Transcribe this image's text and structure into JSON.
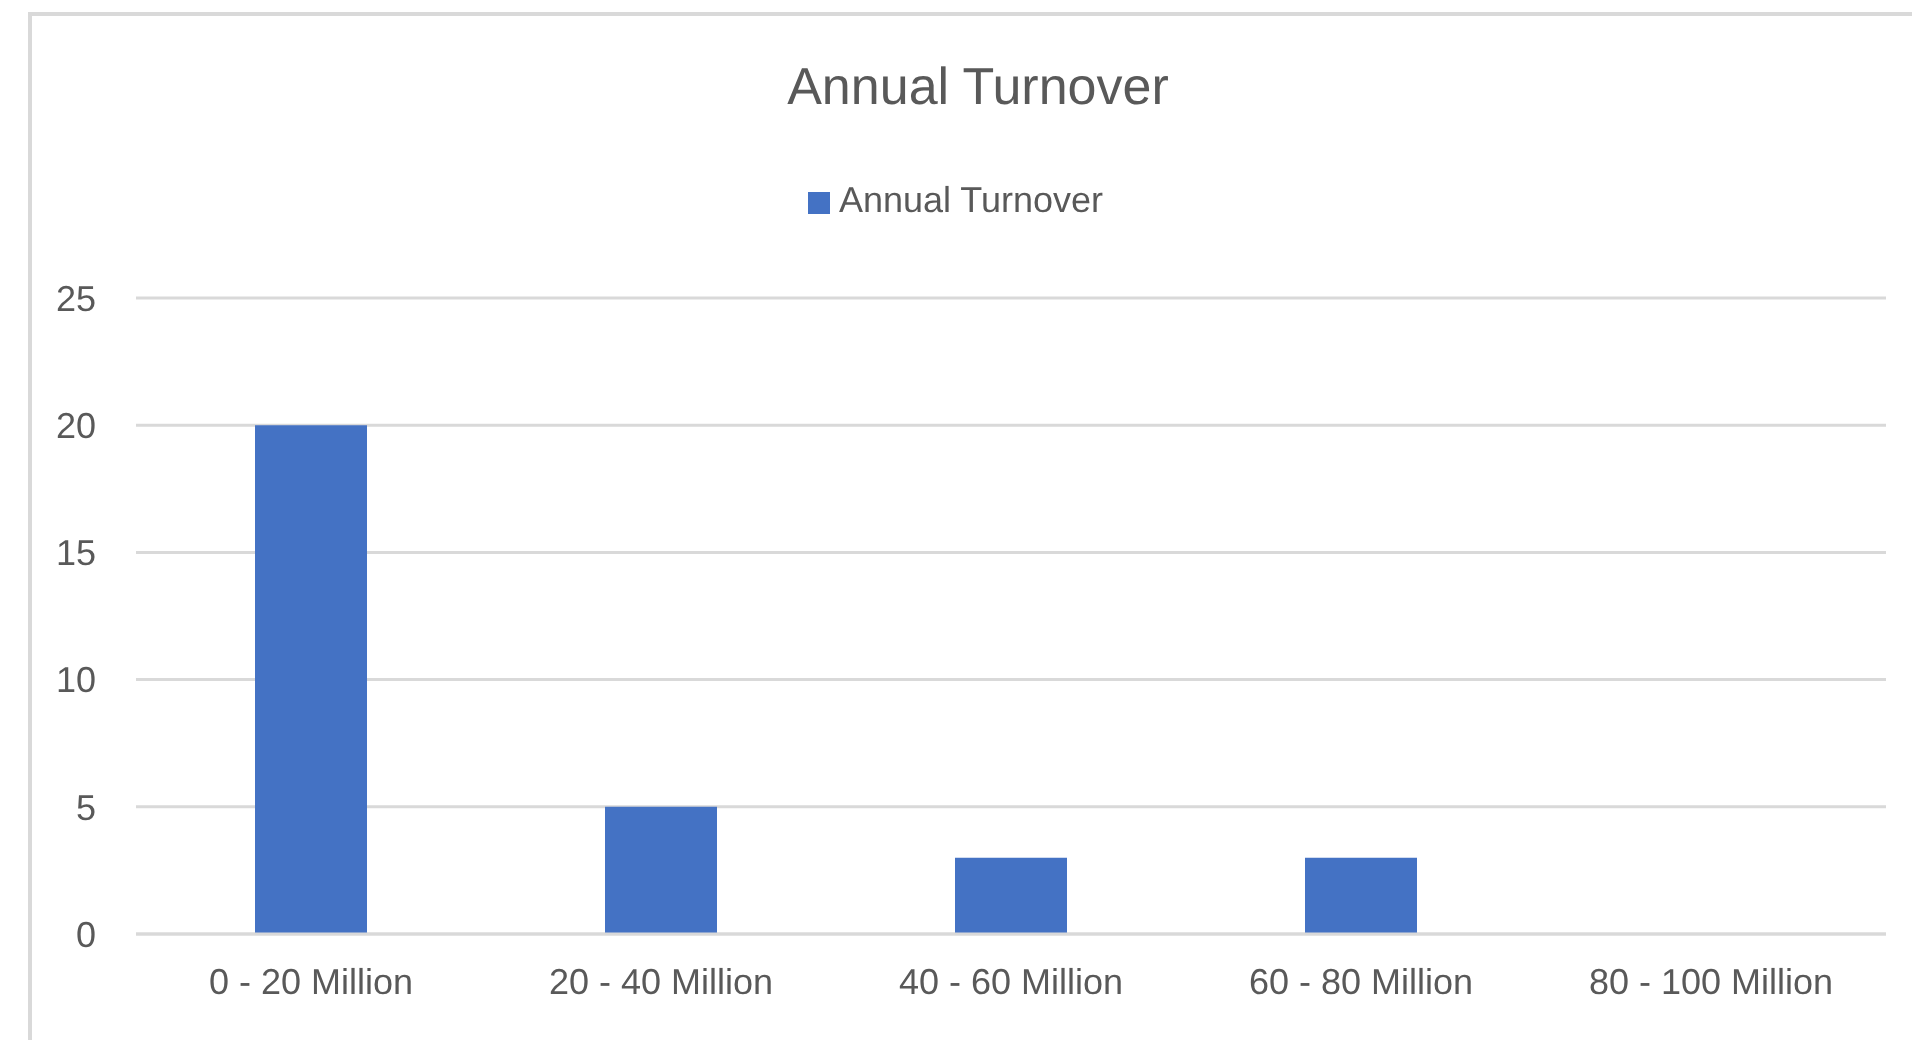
{
  "chart_data": {
    "type": "bar",
    "title": "Annual Turnover",
    "categories": [
      "0 - 20 Million",
      "20 - 40 Million",
      "40 - 60 Million",
      "60 - 80 Million",
      "80 - 100 Million"
    ],
    "series": [
      {
        "name": "Annual Turnover",
        "color": "#4472c4",
        "values": [
          20,
          5,
          3,
          3,
          0
        ]
      }
    ],
    "ylim": [
      0,
      25
    ],
    "yticks": [
      0,
      5,
      10,
      15,
      20,
      25
    ],
    "grid": "y",
    "legend": "top"
  }
}
